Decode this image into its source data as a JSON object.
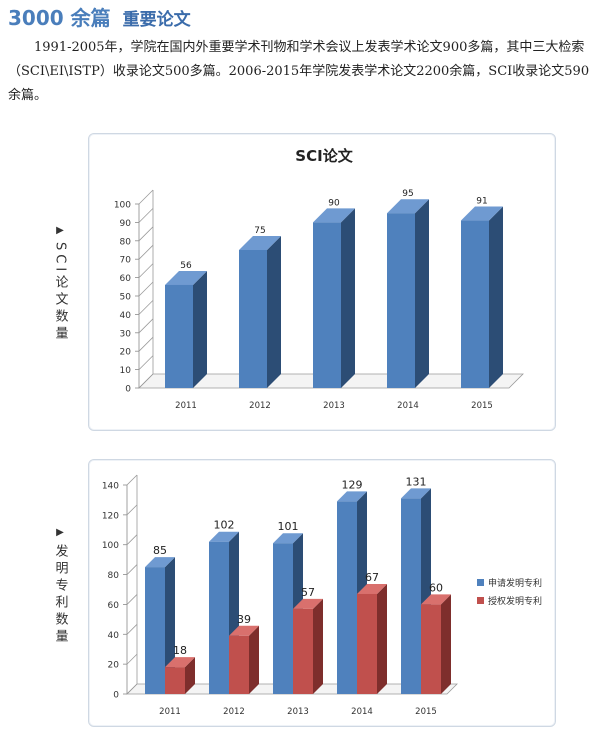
{
  "heading": {
    "number": "3000 余篇",
    "title": "重要论文"
  },
  "intro_text": "1991-2005年，学院在国内外重要学术刊物和学术会议上发表学术论文900多篇，其中三大检索（SCI\\EI\\ISTP）收录论文500多篇。2006-2015年学院发表学术论文2200余篇，SCI收录论文590余篇。",
  "side_labels": {
    "sci": {
      "marker": "▶",
      "text": "SCI论文数量"
    },
    "patent": {
      "marker": "▶",
      "text": "发明专利数量"
    }
  },
  "colors": {
    "blue": "#4f81bd",
    "blue_dark": "#2c4d75",
    "red": "#c0504d",
    "red_dark": "#7e2e2c",
    "heading": "#4a7ebb"
  },
  "chart_data": [
    {
      "type": "bar",
      "title": "SCI论文",
      "categories": [
        "2011",
        "2012",
        "2013",
        "2014",
        "2015"
      ],
      "series": [
        {
          "values": [
            56,
            75,
            90,
            95,
            91
          ]
        }
      ],
      "yticks": [
        "0",
        "10",
        "20",
        "30",
        "40",
        "50",
        "60",
        "70",
        "80",
        "90",
        "100"
      ],
      "ylim": [
        0,
        100
      ],
      "grid": false,
      "legend": "none",
      "style": "3d"
    },
    {
      "type": "bar",
      "title": "",
      "categories": [
        "2011",
        "2012",
        "2013",
        "2014",
        "2015"
      ],
      "series": [
        {
          "name": "申请发明专利",
          "values": [
            85,
            102,
            101,
            129,
            131
          ]
        },
        {
          "name": "授权发明专利",
          "values": [
            18,
            39,
            57,
            67,
            60
          ]
        }
      ],
      "yticks": [
        "0",
        "20",
        "40",
        "60",
        "80",
        "100",
        "120",
        "140"
      ],
      "ylim": [
        0,
        140
      ],
      "grid": false,
      "legend": "right",
      "style": "3d"
    }
  ]
}
